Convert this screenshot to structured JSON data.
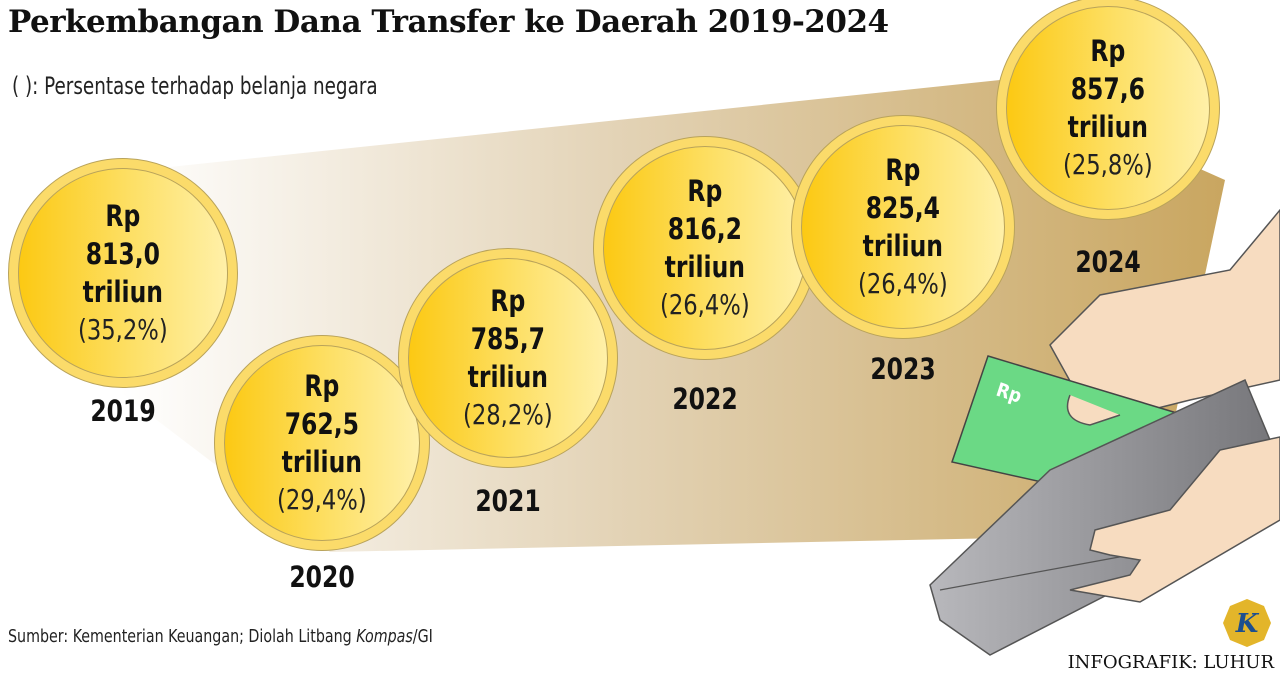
{
  "header": {
    "title": "Perkembangan Dana Transfer ke Daerah 2019-2024",
    "subtitle": "( ): Persentase terhadap belanja negara"
  },
  "chart_data": {
    "type": "bar",
    "title": "Perkembangan Dana Transfer ke Daerah 2019-2024",
    "unit": "Rp triliun",
    "categories": [
      "2019",
      "2020",
      "2021",
      "2022",
      "2023",
      "2024"
    ],
    "values": [
      813.0,
      762.5,
      785.7,
      816.2,
      825.4,
      857.6
    ],
    "percent_of_state_spending": [
      35.2,
      29.4,
      28.2,
      26.4,
      26.4,
      25.8
    ]
  },
  "coins": [
    {
      "year": "2019",
      "rp": "Rp",
      "value": "813,0",
      "unit": "triliun",
      "pct": "(35,2%)"
    },
    {
      "year": "2020",
      "rp": "Rp",
      "value": "762,5",
      "unit": "triliun",
      "pct": "(29,4%)"
    },
    {
      "year": "2021",
      "rp": "Rp",
      "value": "785,7",
      "unit": "triliun",
      "pct": "(28,2%)"
    },
    {
      "year": "2022",
      "rp": "Rp",
      "value": "816,2",
      "unit": "triliun",
      "pct": "(26,4%)"
    },
    {
      "year": "2023",
      "rp": "Rp",
      "value": "825,4",
      "unit": "triliun",
      "pct": "(26,4%)"
    },
    {
      "year": "2024",
      "rp": "Rp",
      "value": "857,6",
      "unit": "triliun",
      "pct": "(25,8%)"
    }
  ],
  "illustration": {
    "banknote_label": "Rp",
    "logo_letter": "K"
  },
  "footer": {
    "source_prefix": "Sumber: Kementerian Keuangan; Diolah Litbang ",
    "source_italic": "Kompas",
    "source_suffix": "/GI",
    "credit": "INFOGRAFIK: LUHUR"
  },
  "colors": {
    "coin": "#fcc913",
    "band": "#c9a660",
    "banknote": "#6bd985",
    "wallet": "#9a9a9e",
    "skin": "#f7dcc0"
  }
}
